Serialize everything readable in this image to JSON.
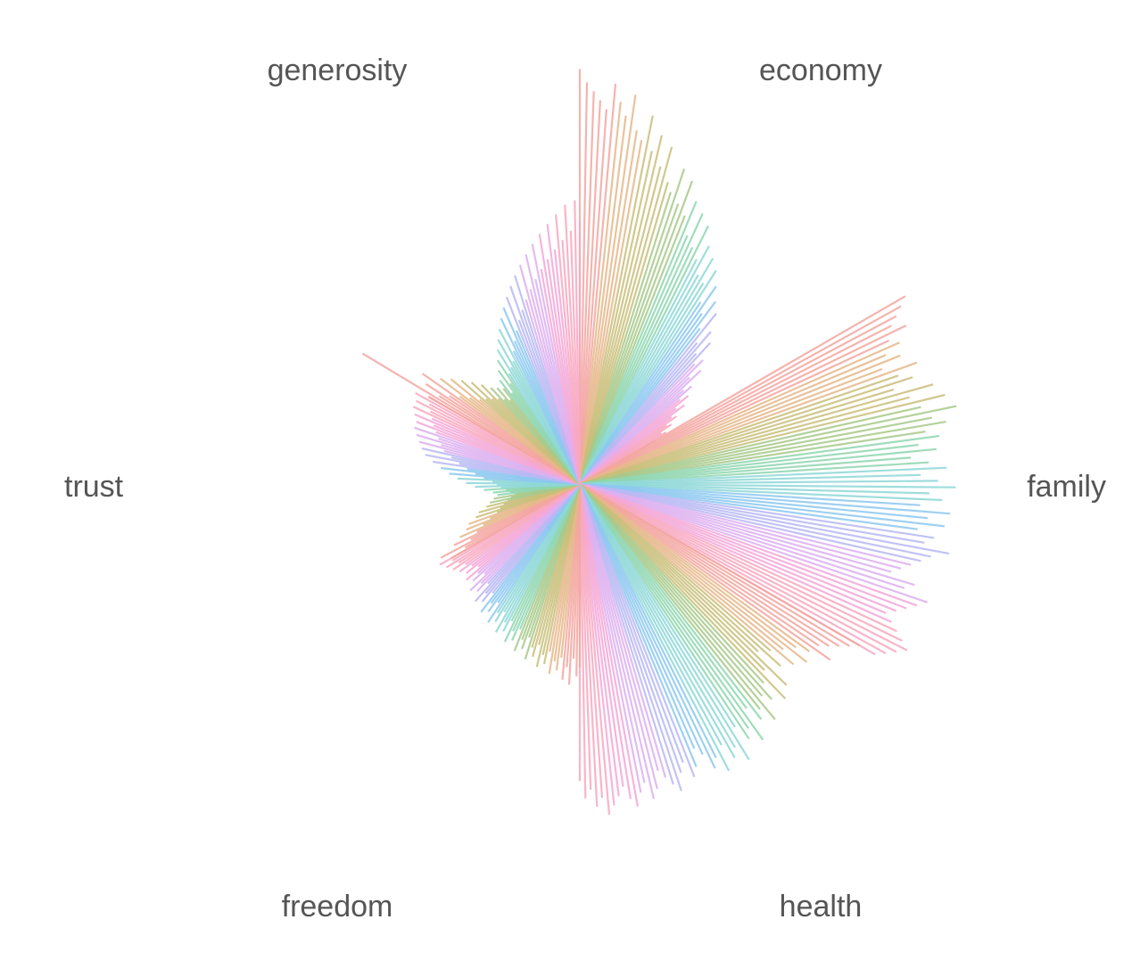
{
  "chart_data": {
    "type": "radial-bar",
    "title": "",
    "categories": [
      "economy",
      "family",
      "health",
      "freedom",
      "trust",
      "generosity"
    ],
    "category_angles_deg": [
      -60,
      0,
      60,
      120,
      180,
      240
    ],
    "category_palette_note": "each sector sweeps a rainbow gradient: salmon, tan, olive, green, teal, blue, lavender, pink",
    "palette": [
      "#f4a6a0",
      "#e6b88a",
      "#c9bf7a",
      "#a8c98a",
      "#8fd6b0",
      "#8fd8d8",
      "#8cc8f0",
      "#b8b8f4",
      "#dcb0f0",
      "#f4a8d8",
      "#f8a8c0"
    ],
    "series": [
      {
        "category": "economy",
        "relative_lengths": [
          0.95,
          0.92,
          0.9,
          0.88,
          0.86,
          0.92,
          0.88,
          0.85,
          0.9,
          0.82,
          0.8,
          0.86,
          0.78,
          0.82,
          0.75,
          0.8,
          0.72,
          0.7,
          0.76,
          0.68,
          0.74,
          0.66,
          0.7,
          0.62,
          0.68,
          0.6,
          0.66,
          0.58,
          0.62,
          0.55,
          0.6,
          0.54,
          0.58,
          0.5,
          0.55,
          0.48,
          0.52,
          0.45,
          0.5,
          0.42,
          0.46,
          0.4,
          0.44,
          0.38,
          0.4,
          0.35,
          0.38,
          0.32,
          0.34,
          0.3,
          0.32,
          0.28,
          0.3,
          0.26,
          0.27,
          0.24,
          0.25,
          0.22,
          0.23,
          0.2
        ]
      },
      {
        "category": "family",
        "relative_lengths": [
          0.86,
          0.84,
          0.82,
          0.8,
          0.83,
          0.78,
          0.8,
          0.76,
          0.79,
          0.74,
          0.82,
          0.77,
          0.8,
          0.75,
          0.84,
          0.78,
          0.86,
          0.8,
          0.88,
          0.82,
          0.85,
          0.8,
          0.83,
          0.78,
          0.82,
          0.76,
          0.8,
          0.84,
          0.78,
          0.82,
          0.86,
          0.8,
          0.83,
          0.78,
          0.85,
          0.8,
          0.84,
          0.78,
          0.82,
          0.8,
          0.86,
          0.82,
          0.8,
          0.78,
          0.76,
          0.74,
          0.8,
          0.78,
          0.84,
          0.82,
          0.8,
          0.78,
          0.76,
          0.78,
          0.8,
          0.82,
          0.84,
          0.82,
          0.8,
          0.78
        ]
      },
      {
        "category": "health",
        "relative_lengths": [
          0.74,
          0.72,
          0.7,
          0.68,
          0.66,
          0.7,
          0.65,
          0.62,
          0.66,
          0.6,
          0.64,
          0.58,
          0.62,
          0.56,
          0.66,
          0.6,
          0.68,
          0.62,
          0.66,
          0.64,
          0.7,
          0.66,
          0.68,
          0.64,
          0.72,
          0.68,
          0.7,
          0.66,
          0.74,
          0.7,
          0.72,
          0.68,
          0.74,
          0.7,
          0.72,
          0.68,
          0.66,
          0.7,
          0.72,
          0.68,
          0.7,
          0.74,
          0.72,
          0.7,
          0.68,
          0.72,
          0.74,
          0.7,
          0.72,
          0.75,
          0.73,
          0.7,
          0.72,
          0.74,
          0.76,
          0.72,
          0.74,
          0.7,
          0.72,
          0.68
        ]
      },
      {
        "category": "freedom",
        "relative_lengths": [
          0.42,
          0.44,
          0.4,
          0.46,
          0.42,
          0.45,
          0.4,
          0.43,
          0.41,
          0.44,
          0.39,
          0.42,
          0.4,
          0.43,
          0.38,
          0.41,
          0.39,
          0.42,
          0.37,
          0.4,
          0.38,
          0.41,
          0.36,
          0.39,
          0.37,
          0.4,
          0.35,
          0.38,
          0.36,
          0.39,
          0.34,
          0.37,
          0.35,
          0.38,
          0.33,
          0.36,
          0.34,
          0.37,
          0.32,
          0.35,
          0.33,
          0.36,
          0.31,
          0.34,
          0.32,
          0.35,
          0.3,
          0.33,
          0.31,
          0.34,
          0.3,
          0.33,
          0.31,
          0.34,
          0.32,
          0.35,
          0.33,
          0.36,
          0.34,
          0.37
        ]
      },
      {
        "category": "trust",
        "relative_lengths": [
          0.34,
          0.3,
          0.36,
          0.28,
          0.32,
          0.26,
          0.3,
          0.24,
          0.28,
          0.22,
          0.27,
          0.2,
          0.25,
          0.19,
          0.24,
          0.18,
          0.22,
          0.17,
          0.21,
          0.16,
          0.2,
          0.15,
          0.19,
          0.16,
          0.2,
          0.17,
          0.22,
          0.18,
          0.24,
          0.19,
          0.26,
          0.2,
          0.28,
          0.22,
          0.3,
          0.24,
          0.32,
          0.26,
          0.34,
          0.28,
          0.36,
          0.3,
          0.37,
          0.32,
          0.38,
          0.33,
          0.39,
          0.34,
          0.4,
          0.35,
          0.4,
          0.36,
          0.41,
          0.37,
          0.42,
          0.38,
          0.42,
          0.39,
          0.43,
          0.4
        ]
      },
      {
        "category": "generosity",
        "relative_lengths": [
          0.4,
          0.58,
          0.38,
          0.42,
          0.36,
          0.44,
          0.34,
          0.4,
          0.32,
          0.38,
          0.3,
          0.36,
          0.29,
          0.34,
          0.28,
          0.32,
          0.27,
          0.3,
          0.26,
          0.29,
          0.25,
          0.28,
          0.3,
          0.26,
          0.32,
          0.28,
          0.34,
          0.3,
          0.36,
          0.31,
          0.38,
          0.32,
          0.4,
          0.34,
          0.42,
          0.36,
          0.44,
          0.38,
          0.46,
          0.4,
          0.48,
          0.42,
          0.5,
          0.44,
          0.52,
          0.46,
          0.54,
          0.48,
          0.56,
          0.5,
          0.58,
          0.52,
          0.6,
          0.54,
          0.62,
          0.56,
          0.64,
          0.58,
          0.65,
          0.6
        ]
      }
    ]
  }
}
